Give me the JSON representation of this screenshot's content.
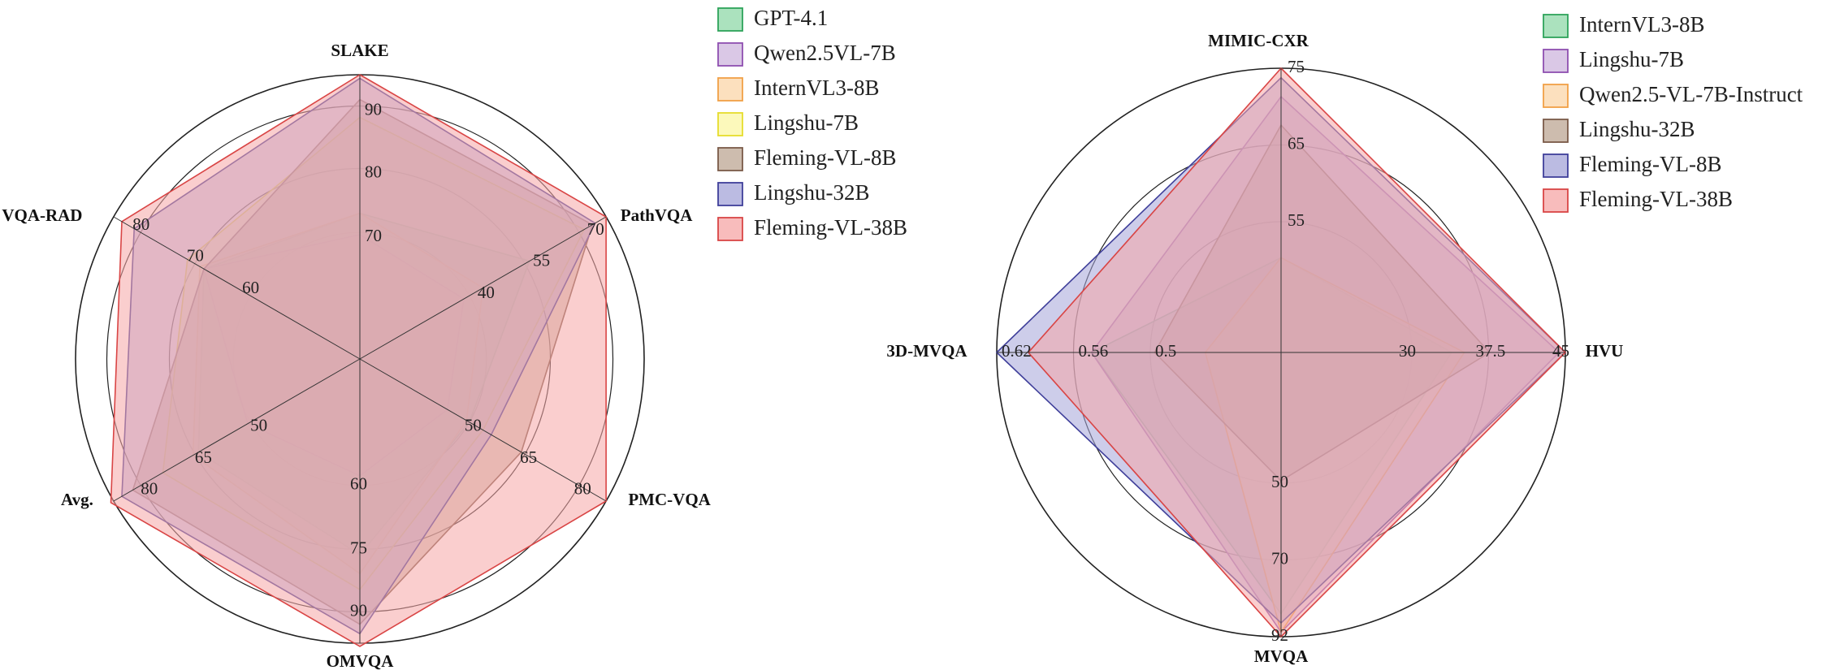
{
  "chart_data": [
    {
      "type": "radar",
      "axes": [
        "SLAKE",
        "PathVQA",
        "PMC-VQA",
        "OMVQA",
        "Avg.",
        "VQA-RAD"
      ],
      "axis_ranges": [
        [
          50,
          90
        ],
        [
          25,
          70
        ],
        [
          35,
          80
        ],
        [
          45,
          90
        ],
        [
          35,
          80
        ],
        [
          50,
          80
        ]
      ],
      "ring_labels": [
        [
          "70",
          "80",
          "90"
        ],
        [
          "40",
          "55",
          "70"
        ],
        [
          "50",
          "65",
          "80"
        ],
        [
          "60",
          "75",
          "90"
        ],
        [
          "50",
          "65",
          "80"
        ],
        [
          "60",
          "70",
          "80"
        ]
      ],
      "series": [
        {
          "name": "GPT-4.1",
          "fill": "#8fd8a8",
          "stroke": "#2ea35a",
          "values": [
            70.5,
            56,
            55,
            76,
            64.5,
            69
          ]
        },
        {
          "name": "Qwen2.5VL-7B",
          "fill": "#cdb5dd",
          "stroke": "#8e4fb0",
          "values": [
            67.5,
            44,
            51,
            63.5,
            55.5,
            69
          ]
        },
        {
          "name": "InternVL3-8B",
          "fill": "#fbd5a8",
          "stroke": "#f0a046",
          "values": [
            70.5,
            47.5,
            54.5,
            79,
            65.5,
            69.5
          ]
        },
        {
          "name": "Lingshu-7B",
          "fill": "#fbf7a4",
          "stroke": "#e6dc2c",
          "values": [
            84,
            66,
            57.5,
            81.5,
            71,
            71
          ]
        },
        {
          "name": "Fleming-VL-8B",
          "fill": "#bca593",
          "stroke": "#7a5a48",
          "values": [
            86.5,
            67.5,
            64.5,
            87,
            76.5,
            69
          ]
        },
        {
          "name": "Lingshu-32B",
          "fill": "#a4a4d8",
          "stroke": "#3f3f9a",
          "values": [
            89.5,
            68,
            59,
            88.5,
            78.5,
            77.5
          ]
        },
        {
          "name": "Fleming-VL-38B",
          "fill": "#f5a5a5",
          "stroke": "#d94545",
          "values": [
            90,
            70,
            80,
            90.5,
            80.5,
            79
          ]
        }
      ]
    },
    {
      "type": "radar",
      "axes": [
        "MIMIC-CXR",
        "HVU",
        "MVQA",
        "3D-MVQA"
      ],
      "axis_ranges": [
        [
          45,
          75
        ],
        [
          22.5,
          45
        ],
        [
          30,
          92
        ],
        [
          0.44,
          0.62
        ]
      ],
      "ring_labels": [
        [
          "55",
          "65",
          "75"
        ],
        [
          "30",
          "37.5",
          "45"
        ],
        [
          "50",
          "70",
          "92"
        ],
        [
          "0.5",
          "0.56",
          "0.62"
        ]
      ],
      "series": [
        {
          "name": "InternVL3-8B",
          "fill": "#8fd8a8",
          "stroke": "#2ea35a",
          "values": [
            55,
            36,
            87,
            0.56
          ]
        },
        {
          "name": "Lingshu-7B",
          "fill": "#cdb5dd",
          "stroke": "#8e4fb0",
          "values": [
            72,
            44.5,
            91,
            0.56
          ]
        },
        {
          "name": "Qwen2.5-VL-7B-Instruct",
          "fill": "#fbd5a8",
          "stroke": "#f0a046",
          "values": [
            55,
            37,
            91,
            0.488
          ]
        },
        {
          "name": "Lingshu-32B",
          "fill": "#bca593",
          "stroke": "#7a5a48",
          "values": [
            69,
            39,
            58,
            0.52
          ]
        },
        {
          "name": "Fleming-VL-8B",
          "fill": "#a4a4d8",
          "stroke": "#3f3f9a",
          "values": [
            74,
            45,
            89,
            0.62
          ]
        },
        {
          "name": "Fleming-VL-38B",
          "fill": "#f5a5a5",
          "stroke": "#d94545",
          "values": [
            75,
            45,
            92,
            0.6
          ]
        }
      ]
    }
  ]
}
